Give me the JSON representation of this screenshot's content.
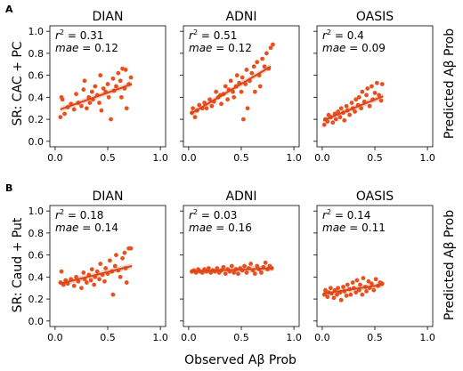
{
  "figure": {
    "x_label": "Observed Aβ Prob",
    "right_label": "Predicted Aβ Prob",
    "accent_color": "#e8501e",
    "line_color": "#d9441a",
    "band_color": "#f2b49d"
  },
  "rows": [
    {
      "row_label": "A",
      "y_label": "SR: CAC + PC",
      "yticks": [
        "0.0",
        "0.2",
        "0.4",
        "0.6",
        "0.8",
        "1.0"
      ],
      "xticks": [
        "0.0",
        "0.5",
        "1.0"
      ]
    },
    {
      "row_label": "B",
      "y_label": "SR: Caud + Put",
      "yticks": [
        "0.0",
        "0.2",
        "0.4",
        "0.6",
        "0.8",
        "1.0"
      ],
      "xticks": [
        "0.0",
        "0.5",
        "1.0"
      ]
    }
  ],
  "chart_data": [
    {
      "type": "scatter",
      "title": "DIAN",
      "row": "A",
      "r2_label": "= 0.31",
      "mae_label": "= 0.12",
      "xlim": [
        -0.05,
        1.05
      ],
      "ylim": [
        -0.05,
        1.05
      ],
      "fit": {
        "x": [
          0.05,
          0.73
        ],
        "y": [
          0.29,
          0.52
        ]
      },
      "points": [
        [
          0.05,
          0.22
        ],
        [
          0.06,
          0.4
        ],
        [
          0.07,
          0.38
        ],
        [
          0.09,
          0.25
        ],
        [
          0.12,
          0.31
        ],
        [
          0.15,
          0.34
        ],
        [
          0.18,
          0.29
        ],
        [
          0.2,
          0.43
        ],
        [
          0.22,
          0.35
        ],
        [
          0.25,
          0.32
        ],
        [
          0.27,
          0.47
        ],
        [
          0.28,
          0.55
        ],
        [
          0.3,
          0.3
        ],
        [
          0.32,
          0.4
        ],
        [
          0.33,
          0.35
        ],
        [
          0.35,
          0.45
        ],
        [
          0.36,
          0.38
        ],
        [
          0.38,
          0.5
        ],
        [
          0.4,
          0.42
        ],
        [
          0.42,
          0.35
        ],
        [
          0.43,
          0.6
        ],
        [
          0.44,
          0.28
        ],
        [
          0.46,
          0.48
        ],
        [
          0.48,
          0.45
        ],
        [
          0.5,
          0.52
        ],
        [
          0.51,
          0.4
        ],
        [
          0.53,
          0.2
        ],
        [
          0.55,
          0.57
        ],
        [
          0.56,
          0.46
        ],
        [
          0.58,
          0.5
        ],
        [
          0.6,
          0.62
        ],
        [
          0.62,
          0.55
        ],
        [
          0.63,
          0.4
        ],
        [
          0.64,
          0.66
        ],
        [
          0.66,
          0.48
        ],
        [
          0.67,
          0.65
        ],
        [
          0.68,
          0.3
        ],
        [
          0.7,
          0.52
        ],
        [
          0.72,
          0.58
        ]
      ]
    },
    {
      "type": "scatter",
      "title": "ADNI",
      "row": "A",
      "r2_label": "= 0.51",
      "mae_label": "= 0.12",
      "xlim": [
        -0.05,
        1.05
      ],
      "ylim": [
        -0.05,
        1.05
      ],
      "fit": {
        "x": [
          0.02,
          0.78
        ],
        "y": [
          0.25,
          0.68
        ]
      },
      "points": [
        [
          0.03,
          0.26
        ],
        [
          0.04,
          0.3
        ],
        [
          0.06,
          0.22
        ],
        [
          0.08,
          0.28
        ],
        [
          0.1,
          0.33
        ],
        [
          0.13,
          0.3
        ],
        [
          0.15,
          0.35
        ],
        [
          0.17,
          0.3
        ],
        [
          0.2,
          0.38
        ],
        [
          0.22,
          0.32
        ],
        [
          0.24,
          0.36
        ],
        [
          0.26,
          0.45
        ],
        [
          0.28,
          0.4
        ],
        [
          0.3,
          0.42
        ],
        [
          0.31,
          0.34
        ],
        [
          0.33,
          0.43
        ],
        [
          0.35,
          0.5
        ],
        [
          0.37,
          0.38
        ],
        [
          0.38,
          0.47
        ],
        [
          0.4,
          0.55
        ],
        [
          0.42,
          0.45
        ],
        [
          0.43,
          0.4
        ],
        [
          0.45,
          0.5
        ],
        [
          0.46,
          0.6
        ],
        [
          0.48,
          0.53
        ],
        [
          0.5,
          0.45
        ],
        [
          0.51,
          0.58
        ],
        [
          0.52,
          0.2
        ],
        [
          0.54,
          0.52
        ],
        [
          0.55,
          0.65
        ],
        [
          0.56,
          0.3
        ],
        [
          0.58,
          0.55
        ],
        [
          0.6,
          0.62
        ],
        [
          0.62,
          0.68
        ],
        [
          0.63,
          0.45
        ],
        [
          0.65,
          0.72
        ],
        [
          0.67,
          0.6
        ],
        [
          0.68,
          0.5
        ],
        [
          0.7,
          0.75
        ],
        [
          0.72,
          0.68
        ],
        [
          0.74,
          0.8
        ],
        [
          0.76,
          0.66
        ],
        [
          0.78,
          0.85
        ],
        [
          0.8,
          0.88
        ]
      ]
    },
    {
      "type": "scatter",
      "title": "OASIS",
      "row": "A",
      "r2_label": "= 0.4",
      "mae_label": "= 0.09",
      "xlim": [
        -0.05,
        1.05
      ],
      "ylim": [
        -0.05,
        1.05
      ],
      "fit": {
        "x": [
          0.01,
          0.58
        ],
        "y": [
          0.19,
          0.41
        ]
      },
      "points": [
        [
          0.02,
          0.15
        ],
        [
          0.03,
          0.2
        ],
        [
          0.05,
          0.18
        ],
        [
          0.06,
          0.24
        ],
        [
          0.08,
          0.22
        ],
        [
          0.1,
          0.17
        ],
        [
          0.12,
          0.25
        ],
        [
          0.13,
          0.2
        ],
        [
          0.15,
          0.27
        ],
        [
          0.17,
          0.22
        ],
        [
          0.18,
          0.3
        ],
        [
          0.2,
          0.26
        ],
        [
          0.21,
          0.19
        ],
        [
          0.23,
          0.32
        ],
        [
          0.24,
          0.28
        ],
        [
          0.26,
          0.24
        ],
        [
          0.28,
          0.35
        ],
        [
          0.29,
          0.3
        ],
        [
          0.31,
          0.27
        ],
        [
          0.32,
          0.38
        ],
        [
          0.34,
          0.33
        ],
        [
          0.35,
          0.4
        ],
        [
          0.37,
          0.3
        ],
        [
          0.38,
          0.45
        ],
        [
          0.4,
          0.36
        ],
        [
          0.42,
          0.42
        ],
        [
          0.43,
          0.48
        ],
        [
          0.45,
          0.32
        ],
        [
          0.47,
          0.5
        ],
        [
          0.48,
          0.38
        ],
        [
          0.5,
          0.44
        ],
        [
          0.52,
          0.53
        ],
        [
          0.54,
          0.42
        ],
        [
          0.56,
          0.37
        ],
        [
          0.57,
          0.52
        ]
      ]
    },
    {
      "type": "scatter",
      "title": "DIAN",
      "row": "B",
      "r2_label": "= 0.18",
      "mae_label": "= 0.14",
      "xlim": [
        -0.05,
        1.05
      ],
      "ylim": [
        -0.05,
        1.05
      ],
      "fit": {
        "x": [
          0.05,
          0.73
        ],
        "y": [
          0.34,
          0.5
        ]
      },
      "points": [
        [
          0.05,
          0.35
        ],
        [
          0.06,
          0.45
        ],
        [
          0.08,
          0.33
        ],
        [
          0.1,
          0.37
        ],
        [
          0.12,
          0.34
        ],
        [
          0.15,
          0.38
        ],
        [
          0.18,
          0.32
        ],
        [
          0.2,
          0.4
        ],
        [
          0.22,
          0.36
        ],
        [
          0.25,
          0.3
        ],
        [
          0.27,
          0.44
        ],
        [
          0.28,
          0.38
        ],
        [
          0.3,
          0.35
        ],
        [
          0.32,
          0.42
        ],
        [
          0.34,
          0.37
        ],
        [
          0.35,
          0.47
        ],
        [
          0.37,
          0.33
        ],
        [
          0.38,
          0.4
        ],
        [
          0.4,
          0.45
        ],
        [
          0.42,
          0.38
        ],
        [
          0.43,
          0.52
        ],
        [
          0.45,
          0.42
        ],
        [
          0.47,
          0.36
        ],
        [
          0.48,
          0.48
        ],
        [
          0.5,
          0.43
        ],
        [
          0.52,
          0.55
        ],
        [
          0.54,
          0.45
        ],
        [
          0.55,
          0.24
        ],
        [
          0.57,
          0.5
        ],
        [
          0.58,
          0.6
        ],
        [
          0.6,
          0.46
        ],
        [
          0.62,
          0.4
        ],
        [
          0.64,
          0.57
        ],
        [
          0.66,
          0.62
        ],
        [
          0.67,
          0.48
        ],
        [
          0.68,
          0.35
        ],
        [
          0.7,
          0.66
        ],
        [
          0.72,
          0.66
        ]
      ]
    },
    {
      "type": "scatter",
      "title": "ADNI",
      "row": "B",
      "r2_label": "= 0.03",
      "mae_label": "= 0.16",
      "xlim": [
        -0.05,
        1.05
      ],
      "ylim": [
        -0.05,
        1.05
      ],
      "fit": {
        "x": [
          0.02,
          0.8
        ],
        "y": [
          0.45,
          0.48
        ]
      },
      "points": [
        [
          0.03,
          0.45
        ],
        [
          0.05,
          0.46
        ],
        [
          0.07,
          0.44
        ],
        [
          0.09,
          0.47
        ],
        [
          0.11,
          0.45
        ],
        [
          0.13,
          0.44
        ],
        [
          0.15,
          0.47
        ],
        [
          0.17,
          0.45
        ],
        [
          0.19,
          0.48
        ],
        [
          0.21,
          0.44
        ],
        [
          0.23,
          0.46
        ],
        [
          0.25,
          0.45
        ],
        [
          0.27,
          0.48
        ],
        [
          0.29,
          0.44
        ],
        [
          0.31,
          0.46
        ],
        [
          0.33,
          0.49
        ],
        [
          0.35,
          0.43
        ],
        [
          0.37,
          0.47
        ],
        [
          0.39,
          0.45
        ],
        [
          0.41,
          0.5
        ],
        [
          0.43,
          0.44
        ],
        [
          0.45,
          0.47
        ],
        [
          0.47,
          0.43
        ],
        [
          0.49,
          0.48
        ],
        [
          0.51,
          0.46
        ],
        [
          0.53,
          0.5
        ],
        [
          0.55,
          0.44
        ],
        [
          0.57,
          0.48
        ],
        [
          0.59,
          0.52
        ],
        [
          0.61,
          0.46
        ],
        [
          0.63,
          0.43
        ],
        [
          0.65,
          0.5
        ],
        [
          0.67,
          0.47
        ],
        [
          0.69,
          0.44
        ],
        [
          0.71,
          0.49
        ],
        [
          0.73,
          0.53
        ],
        [
          0.75,
          0.47
        ],
        [
          0.77,
          0.5
        ],
        [
          0.79,
          0.48
        ]
      ]
    },
    {
      "type": "scatter",
      "title": "OASIS",
      "row": "B",
      "r2_label": "= 0.14",
      "mae_label": "= 0.11",
      "xlim": [
        -0.05,
        1.05
      ],
      "ylim": [
        -0.05,
        1.05
      ],
      "fit": {
        "x": [
          0.01,
          0.58
        ],
        "y": [
          0.25,
          0.33
        ]
      },
      "points": [
        [
          0.02,
          0.24
        ],
        [
          0.03,
          0.28
        ],
        [
          0.05,
          0.22
        ],
        [
          0.06,
          0.26
        ],
        [
          0.08,
          0.3
        ],
        [
          0.09,
          0.25
        ],
        [
          0.11,
          0.21
        ],
        [
          0.12,
          0.28
        ],
        [
          0.14,
          0.24
        ],
        [
          0.15,
          0.3
        ],
        [
          0.17,
          0.26
        ],
        [
          0.18,
          0.19
        ],
        [
          0.2,
          0.31
        ],
        [
          0.21,
          0.27
        ],
        [
          0.23,
          0.23
        ],
        [
          0.24,
          0.33
        ],
        [
          0.26,
          0.29
        ],
        [
          0.27,
          0.24
        ],
        [
          0.29,
          0.35
        ],
        [
          0.3,
          0.3
        ],
        [
          0.32,
          0.26
        ],
        [
          0.33,
          0.37
        ],
        [
          0.35,
          0.28
        ],
        [
          0.36,
          0.33
        ],
        [
          0.38,
          0.24
        ],
        [
          0.39,
          0.39
        ],
        [
          0.41,
          0.31
        ],
        [
          0.42,
          0.27
        ],
        [
          0.44,
          0.36
        ],
        [
          0.45,
          0.3
        ],
        [
          0.47,
          0.34
        ],
        [
          0.49,
          0.28
        ],
        [
          0.51,
          0.38
        ],
        [
          0.53,
          0.32
        ],
        [
          0.55,
          0.35
        ],
        [
          0.57,
          0.34
        ]
      ]
    }
  ]
}
